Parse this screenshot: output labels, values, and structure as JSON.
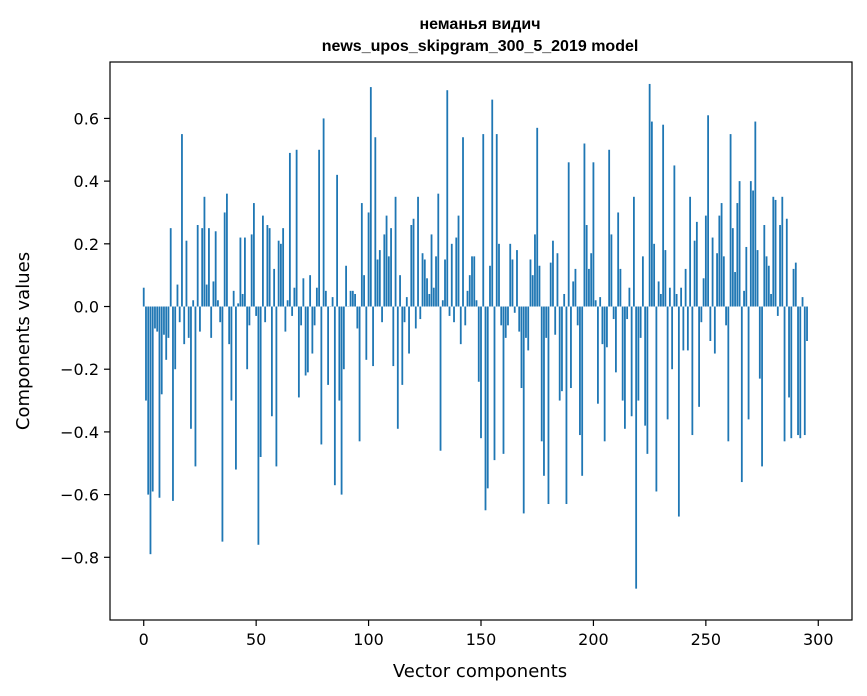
{
  "chart_data": {
    "type": "bar",
    "title": "неманья видич",
    "subtitle": "news_upos_skipgram_300_5_2019 model",
    "xlabel": "Vector components",
    "ylabel": "Components values",
    "xlim": [
      -15,
      315
    ],
    "ylim": [
      -1.0,
      0.78
    ],
    "xticks": [
      0,
      50,
      100,
      150,
      200,
      250,
      300
    ],
    "xtick_labels": [
      "0",
      "50",
      "100",
      "150",
      "200",
      "250",
      "300"
    ],
    "yticks": [
      -0.8,
      -0.6,
      -0.4,
      -0.2,
      0.0,
      0.2,
      0.4,
      0.6
    ],
    "ytick_labels": [
      "−0.8",
      "−0.6",
      "−0.4",
      "−0.2",
      "0.0",
      "0.2",
      "0.4",
      "0.6"
    ],
    "bar_color": "#1f77b4",
    "values": [
      0.06,
      -0.3,
      -0.6,
      -0.79,
      -0.59,
      -0.07,
      -0.08,
      -0.61,
      -0.28,
      -0.09,
      -0.17,
      -0.1,
      0.25,
      -0.62,
      -0.2,
      0.07,
      -0.05,
      0.55,
      -0.12,
      0.21,
      -0.1,
      -0.39,
      0.02,
      -0.51,
      0.26,
      -0.08,
      0.25,
      0.35,
      0.07,
      0.25,
      -0.1,
      0.08,
      0.24,
      0.02,
      -0.05,
      -0.75,
      0.3,
      0.36,
      -0.12,
      -0.3,
      0.05,
      -0.52,
      0.01,
      0.22,
      0.04,
      0.22,
      -0.2,
      -0.06,
      0.23,
      0.33,
      -0.03,
      -0.76,
      -0.48,
      0.29,
      -0.05,
      0.26,
      0.25,
      -0.35,
      0.12,
      -0.51,
      0.21,
      0.2,
      0.25,
      -0.08,
      0.02,
      0.49,
      -0.03,
      0.06,
      0.5,
      -0.29,
      -0.06,
      0.09,
      -0.22,
      -0.21,
      0.1,
      -0.15,
      -0.06,
      0.06,
      0.5,
      -0.44,
      0.6,
      0.05,
      -0.25,
      0.0,
      0.03,
      -0.57,
      0.42,
      -0.3,
      -0.6,
      -0.2,
      0.13,
      0.0,
      0.05,
      0.05,
      0.04,
      -0.07,
      -0.43,
      0.33,
      0.1,
      -0.17,
      0.3,
      0.7,
      -0.19,
      0.54,
      0.15,
      0.18,
      -0.05,
      0.23,
      0.29,
      0.16,
      0.25,
      -0.19,
      0.35,
      -0.39,
      0.1,
      -0.25,
      -0.05,
      0.03,
      -0.15,
      0.26,
      0.28,
      -0.07,
      0.35,
      -0.04,
      0.17,
      0.15,
      0.09,
      0.04,
      0.23,
      0.06,
      0.16,
      0.36,
      -0.46,
      0.02,
      0.15,
      0.69,
      -0.03,
      0.2,
      -0.05,
      0.22,
      0.29,
      -0.12,
      0.54,
      -0.06,
      0.05,
      0.1,
      0.16,
      0.16,
      0.02,
      -0.24,
      -0.42,
      0.55,
      -0.65,
      -0.58,
      0.13,
      0.66,
      -0.49,
      0.55,
      0.2,
      -0.06,
      -0.47,
      -0.1,
      -0.06,
      0.2,
      0.15,
      -0.02,
      0.18,
      -0.08,
      -0.26,
      -0.66,
      -0.1,
      -0.14,
      0.15,
      0.1,
      0.23,
      0.57,
      0.13,
      -0.43,
      -0.54,
      -0.1,
      -0.63,
      0.14,
      0.21,
      -0.09,
      0.17,
      -0.3,
      -0.27,
      0.04,
      -0.63,
      0.46,
      -0.26,
      0.08,
      0.12,
      -0.06,
      -0.41,
      -0.54,
      0.52,
      0.26,
      0.12,
      0.17,
      0.46,
      0.02,
      -0.31,
      0.03,
      -0.12,
      -0.43,
      -0.13,
      0.5,
      0.23,
      -0.04,
      -0.21,
      0.3,
      0.12,
      -0.3,
      -0.39,
      -0.04,
      0.06,
      -0.35,
      0.35,
      -0.9,
      -0.3,
      -0.1,
      0.16,
      -0.38,
      -0.47,
      0.71,
      0.59,
      0.2,
      -0.59,
      0.08,
      0.04,
      0.58,
      0.18,
      -0.36,
      0.06,
      -0.2,
      0.45,
      0.04,
      -0.67,
      0.06,
      -0.14,
      0.12,
      -0.14,
      0.35,
      -0.41,
      0.21,
      0.27,
      -0.32,
      -0.05,
      0.09,
      0.29,
      0.61,
      -0.11,
      0.22,
      -0.15,
      0.17,
      0.29,
      0.33,
      0.16,
      -0.06,
      -0.43,
      0.55,
      0.25,
      0.11,
      0.33,
      0.4,
      -0.56,
      0.05,
      0.19,
      -0.36,
      0.4,
      0.37,
      0.59,
      0.18,
      -0.23,
      -0.51,
      0.26,
      0.16,
      0.13,
      0.04,
      0.35,
      0.34,
      -0.03,
      0.26,
      0.35,
      -0.43,
      0.28,
      -0.29,
      -0.42,
      0.12,
      0.14,
      -0.41,
      -0.42,
      0.03,
      -0.41,
      -0.11
    ]
  }
}
